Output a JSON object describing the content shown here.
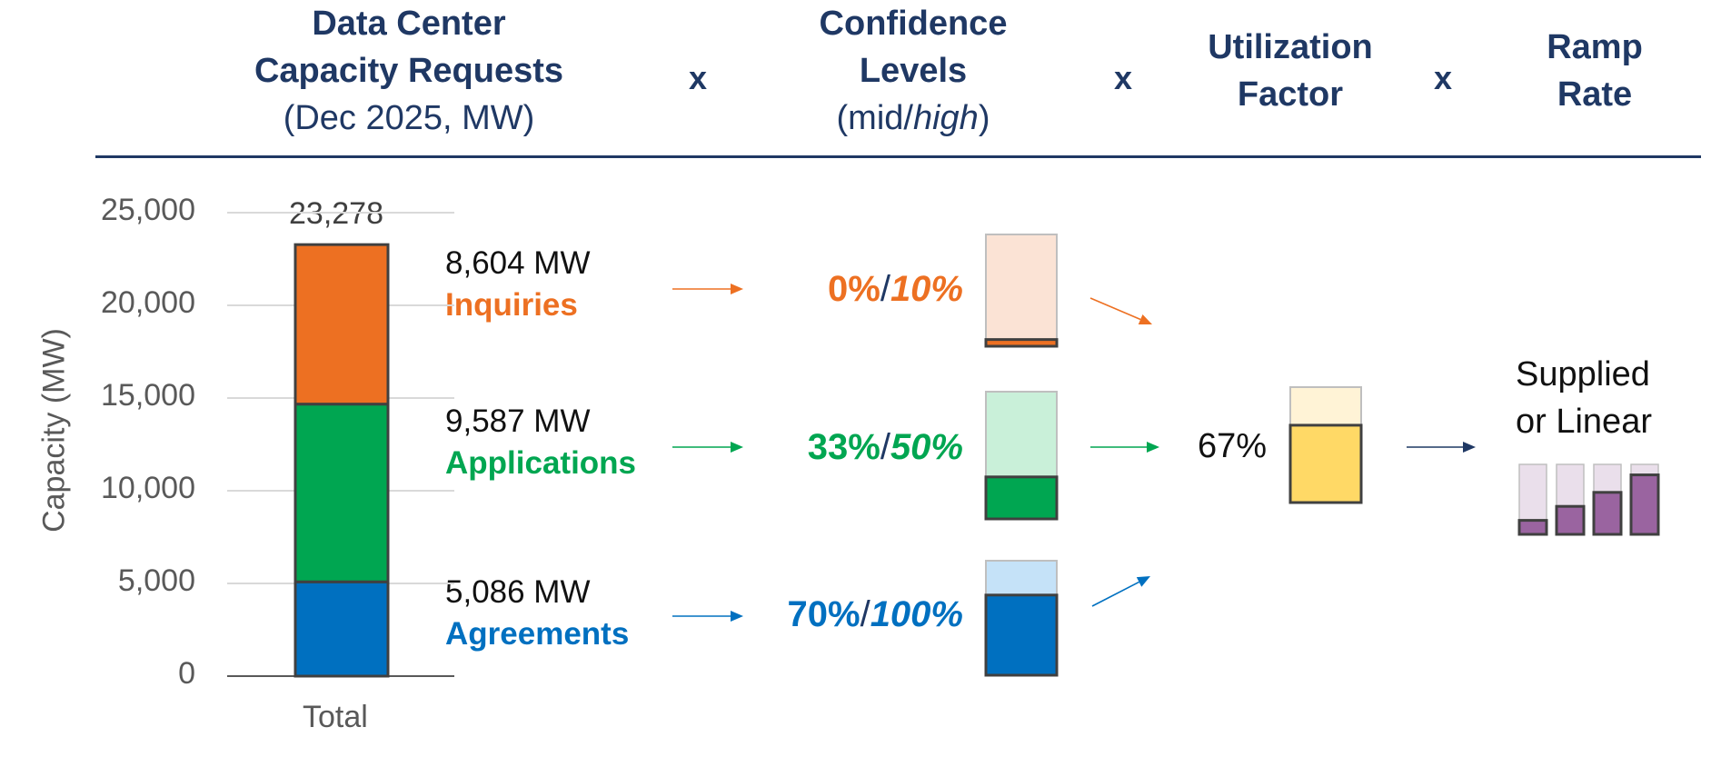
{
  "header": {
    "col1": {
      "line1": "Data Center",
      "line2": "Capacity Requests",
      "sub": "(Dec 2025, MW)"
    },
    "col2": {
      "line1": "Confidence",
      "line2": "Levels",
      "sub_open": "(mid/",
      "sub_high": "high",
      "sub_close": ")"
    },
    "col3": {
      "line1": "Utilization",
      "line2": "Factor"
    },
    "col4": {
      "line1": "Ramp",
      "line2": "Rate"
    },
    "operator": "x"
  },
  "chart_data": {
    "type": "bar",
    "categories": [
      "Total"
    ],
    "stacked": true,
    "ylabel": "Capacity (MW)",
    "ylim": [
      0,
      25000
    ],
    "yticks": [
      "0",
      "5,000",
      "10,000",
      "15,000",
      "20,000",
      "25,000"
    ],
    "total_label": "23,278",
    "series": [
      {
        "name": "Agreements",
        "values": [
          5086
        ],
        "color": "#0070c0"
      },
      {
        "name": "Applications",
        "values": [
          9587
        ],
        "color": "#00a651"
      },
      {
        "name": "Inquiries",
        "values": [
          8604
        ],
        "color": "#ed7022"
      }
    ]
  },
  "rows": [
    {
      "mw": "8,604 MW",
      "label": "Inquiries",
      "color": "#ed7022",
      "light": "#fbe3d5",
      "mid": "0%",
      "high": "10%",
      "mid_frac": 0.0,
      "high_frac": 0.1
    },
    {
      "mw": "9,587 MW",
      "label": "Applications",
      "color": "#00a651",
      "light": "#c9f0d9",
      "mid": "33%",
      "high": "50%",
      "mid_frac": 0.33,
      "high_frac": 0.5
    },
    {
      "mw": "5,086 MW",
      "label": "Agreements",
      "color": "#0070c0",
      "light": "#c5e2f8",
      "mid": "70%",
      "high": "100%",
      "mid_frac": 0.7,
      "high_frac": 1.0
    }
  ],
  "utilization": {
    "label": "67%",
    "frac": 0.67,
    "color": "#ffd966",
    "light": "#fff3d6"
  },
  "ramp": {
    "line1": "Supplied",
    "line2": "or Linear",
    "color": "#9a64a0",
    "light": "#eadfeb",
    "fracs": [
      0.2,
      0.4,
      0.6,
      0.85
    ]
  },
  "colors": {
    "navy": "#1f3864",
    "grid": "#d9d9d9",
    "outline": "#404040"
  }
}
